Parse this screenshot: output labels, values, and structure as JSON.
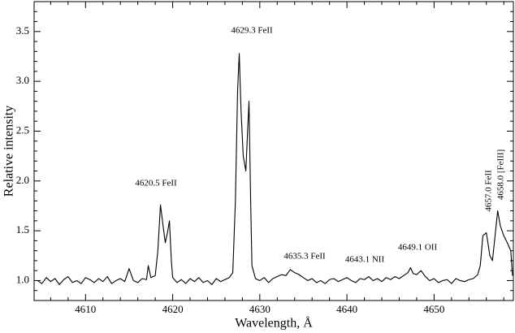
{
  "chart_data": {
    "type": "line",
    "xlabel": "Wavelength, Å",
    "ylabel": "Relative intensity",
    "xlim": [
      4604.1,
      4659.1
    ],
    "ylim": [
      0.8,
      3.8
    ],
    "xticks": [
      4610,
      4620,
      4630,
      4640,
      4650
    ],
    "yticks": [
      {
        "value": 1,
        "label": "1.0"
      },
      1.5,
      {
        "value": 2,
        "label": "2.0"
      },
      2.5,
      {
        "value": 3,
        "label": "3.0"
      },
      3.5
    ],
    "xminorticks": [
      4606,
      4608,
      4612,
      4614,
      4616,
      4618,
      4622,
      4624,
      4626,
      4628,
      4632,
      4634,
      4636,
      4638,
      4642,
      4644,
      4646,
      4648,
      4652,
      4654,
      4656,
      4658
    ],
    "yminorticks": [
      0.9,
      1.1,
      1.2,
      1.3,
      1.4,
      1.6,
      1.7,
      1.8,
      1.9,
      2.1,
      2.2,
      2.3,
      2.4,
      2.6,
      2.7,
      2.8,
      2.9,
      3.1,
      3.2,
      3.3,
      3.4,
      3.6,
      3.7
    ],
    "annotations": [
      "4629.3 FeII",
      "4620.5 FeII",
      "4635.3 FeII",
      "4643.1 NII",
      "4649.1 OII",
      "4657.0 FeII",
      "4658.0 [FeIII]"
    ],
    "series": [
      {
        "color": "#000000",
        "x": [
          4604.5,
          4605,
          4605.5,
          4606,
          4606.5,
          4607,
          4607.5,
          4608,
          4608.5,
          4609,
          4609.5,
          4610,
          4610.5,
          4611,
          4611.5,
          4612,
          4612.5,
          4613,
          4613.5,
          4614,
          4614.5,
          4615,
          4615.5,
          4616,
          4616.5,
          4617,
          4617.2,
          4617.5,
          4618,
          4618.3,
          4618.6,
          4618.9,
          4619.15,
          4619.4,
          4619.63,
          4619.85,
          4620,
          4620.5,
          4621,
          4621.5,
          4622,
          4622.5,
          4623,
          4623.5,
          4624,
          4624.5,
          4625,
          4625.5,
          4626,
          4626.5,
          4626.9,
          4627.2,
          4627.45,
          4627.64,
          4627.85,
          4628.1,
          4628.4,
          4628.6,
          4628.76,
          4628.95,
          4629.1,
          4629.5,
          4630,
          4630.5,
          4631,
          4631.5,
          4632,
          4632.5,
          4633,
          4633.5,
          4634,
          4634.5,
          4635,
          4635.5,
          4636,
          4636.5,
          4637,
          4637.5,
          4638,
          4638.5,
          4639,
          4639.5,
          4640,
          4640.5,
          4641,
          4641.5,
          4642,
          4642.5,
          4643,
          4643.5,
          4644,
          4644.5,
          4645,
          4645.5,
          4646,
          4646.5,
          4647,
          4647.3,
          4647.6,
          4648,
          4648.5,
          4649,
          4649.5,
          4650,
          4650.5,
          4651,
          4651.5,
          4652,
          4652.5,
          4653,
          4653.5,
          4654,
          4654.5,
          4655,
          4655.3,
          4655.6,
          4656,
          4656.4,
          4656.7,
          4657,
          4657.3,
          4657.6,
          4658,
          4658.4,
          4658.8,
          4659
        ],
        "values": [
          1.0,
          0.97,
          1.03,
          0.99,
          1.02,
          0.96,
          1.01,
          1.04,
          0.98,
          1.0,
          0.97,
          1.03,
          1.01,
          0.98,
          1.02,
          0.99,
          1.04,
          0.97,
          1.0,
          1.02,
          0.99,
          1.12,
          1.0,
          0.98,
          1.02,
          1.01,
          1.15,
          1.03,
          1.05,
          1.3,
          1.76,
          1.55,
          1.38,
          1.48,
          1.6,
          1.2,
          1.03,
          0.98,
          1.01,
          0.97,
          1.02,
          0.99,
          1.03,
          0.98,
          1.0,
          0.96,
          1.02,
          0.99,
          1.01,
          1.03,
          1.08,
          1.8,
          2.9,
          3.28,
          2.7,
          2.25,
          2.1,
          2.5,
          2.8,
          1.8,
          1.15,
          1.02,
          1.0,
          1.03,
          0.98,
          1.02,
          1.04,
          1.06,
          1.05,
          1.11,
          1.08,
          1.06,
          1.03,
          1.0,
          1.02,
          0.98,
          1.0,
          0.97,
          1.01,
          1.02,
          0.99,
          1.01,
          1.03,
          1.0,
          0.98,
          1.02,
          1.01,
          1.04,
          1.0,
          1.02,
          0.99,
          1.03,
          1.01,
          1.04,
          1.02,
          1.05,
          1.08,
          1.13,
          1.07,
          1.06,
          1.1,
          1.04,
          1.0,
          1.02,
          0.98,
          1.0,
          1.01,
          0.97,
          1.02,
          1.0,
          0.99,
          1.01,
          1.02,
          1.06,
          1.15,
          1.45,
          1.48,
          1.25,
          1.2,
          1.45,
          1.7,
          1.55,
          1.45,
          1.38,
          1.3,
          1.05
        ]
      }
    ]
  }
}
